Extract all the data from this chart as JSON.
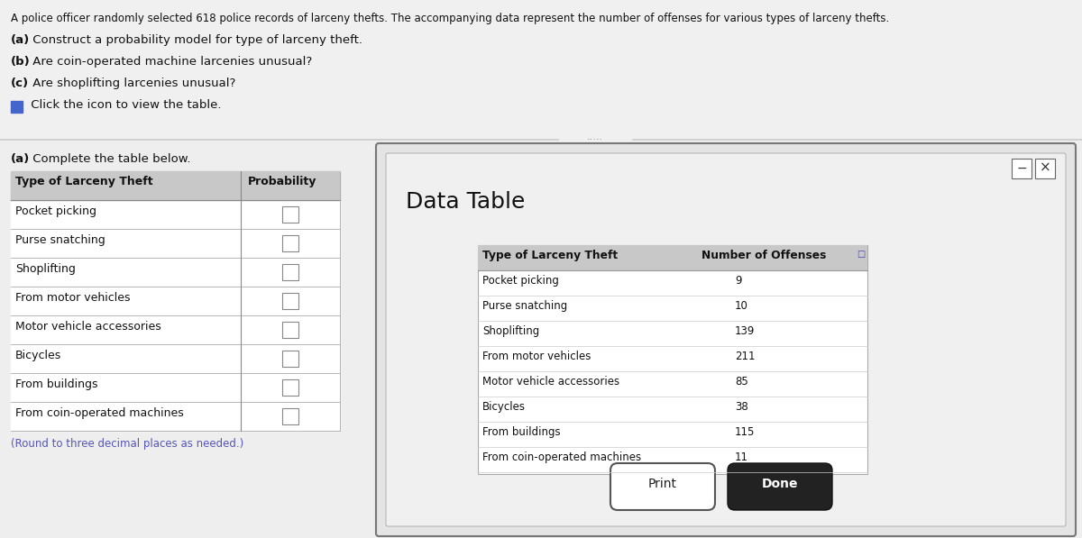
{
  "header_text": "A police officer randomly selected 618 police records of larceny thefts. The accompanying data represent the number of offenses for various types of larceny thefts.",
  "q1_bold": "(a)",
  "q1_rest": " Construct a probability model for type of larceny theft.",
  "q2_bold": "(b)",
  "q2_rest": " Are coin-operated machine larcenies unusual?",
  "q3_bold": "(c)",
  "q3_rest": " Are shoplifting larcenies unusual?",
  "icon_text": " Click the icon to view the table.",
  "part_a_label_bold": "(a)",
  "part_a_label_rest": " Complete the table below.",
  "left_table_header": [
    "Type of Larceny Theft",
    "Probability"
  ],
  "left_table_rows": [
    "Pocket picking",
    "Purse snatching",
    "Shoplifting",
    "From motor vehicles",
    "Motor vehicle accessories",
    "Bicycles",
    "From buildings",
    "From coin-operated machines"
  ],
  "round_note": "(Round to three decimal places as needed.)",
  "data_table_title": "Data Table",
  "data_table_header": [
    "Type of Larceny Theft",
    "Number of Offenses"
  ],
  "data_table_rows": [
    [
      "Pocket picking",
      "9"
    ],
    [
      "Purse snatching",
      "10"
    ],
    [
      "Shoplifting",
      "139"
    ],
    [
      "From motor vehicles",
      "211"
    ],
    [
      "Motor vehicle accessories",
      "85"
    ],
    [
      "Bicycles",
      "38"
    ],
    [
      "From buildings",
      "115"
    ],
    [
      "From coin-operated machines",
      "11"
    ]
  ],
  "print_btn": "Print",
  "done_btn": "Done",
  "dots_text": ".....",
  "top_section_bg": "#f0f0f0",
  "bottom_section_bg": "#f0f0f0",
  "divider_color": "#cccccc",
  "header_bg": "#c8c8c8",
  "row_bg": "#ffffff",
  "table_border": "#999999",
  "round_note_color": "#5555bb",
  "dialog_outer_bg": "#e0e0e0",
  "dialog_inner_bg": "#f2f2f2",
  "dialog_border": "#888888",
  "inner_table_header_bg": "#c8c8c8",
  "inner_table_bg": "#ffffff",
  "inner_table_border": "#aaaaaa",
  "done_btn_bg": "#222222",
  "print_btn_bg": "#ffffff"
}
